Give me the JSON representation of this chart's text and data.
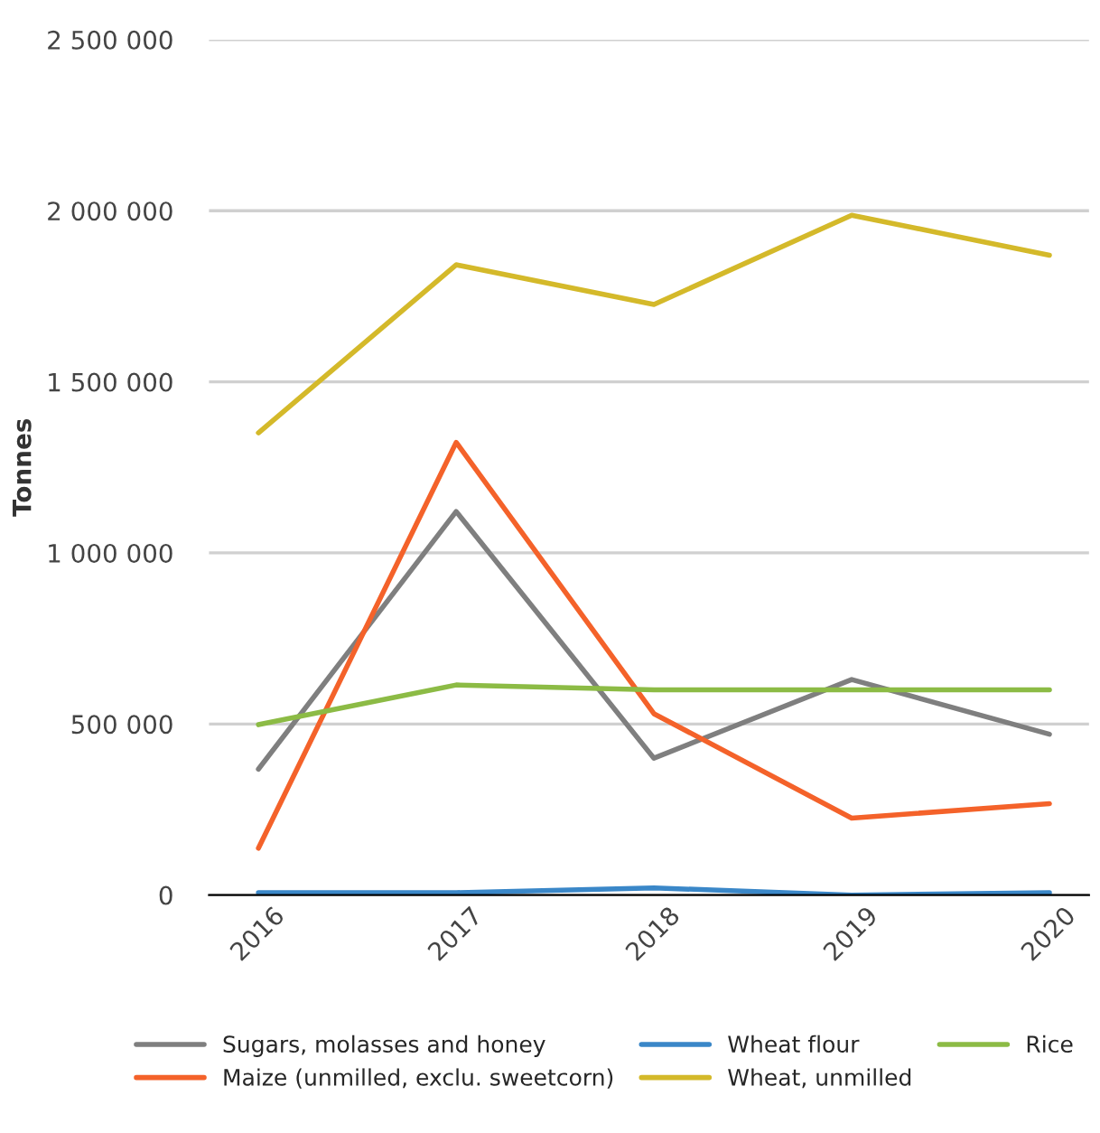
{
  "chart_data": {
    "type": "line",
    "ylabel": "Tonnes",
    "categories": [
      "2016",
      "2017",
      "2018",
      "2019",
      "2020"
    ],
    "series": [
      {
        "name": "Sugars, molasses and honey",
        "color": "#7f7f7f",
        "values": [
          368000,
          1121000,
          400000,
          630000,
          470000
        ]
      },
      {
        "name": "Maize (unmilled, exclu. sweetcorn)",
        "color": "#f4622a",
        "values": [
          137000,
          1323000,
          530000,
          225000,
          267000
        ]
      },
      {
        "name": "Wheat flour",
        "color": "#3a87c8",
        "values": [
          7000,
          7000,
          21000,
          0,
          7000
        ]
      },
      {
        "name": "Wheat, unmilled",
        "color": "#d4b92a",
        "values": [
          1351000,
          1842000,
          1726000,
          1987000,
          1870000
        ]
      },
      {
        "name": "Rice",
        "color": "#8cbb45",
        "values": [
          498000,
          614000,
          600000,
          600000,
          600000
        ]
      }
    ],
    "ylim": [
      0,
      2500000
    ],
    "yticks": [
      {
        "value": 0,
        "label": "0"
      },
      {
        "value": 500000,
        "label": "500 000"
      },
      {
        "value": 1000000,
        "label": "1 000 000"
      },
      {
        "value": 1500000,
        "label": "1 500 000"
      },
      {
        "value": 2000000,
        "label": "2 000 000"
      },
      {
        "value": 2500000,
        "label": "2 500 000"
      }
    ],
    "grid": "y",
    "legend": "bottom",
    "marker": "none",
    "line_style": "solid"
  }
}
